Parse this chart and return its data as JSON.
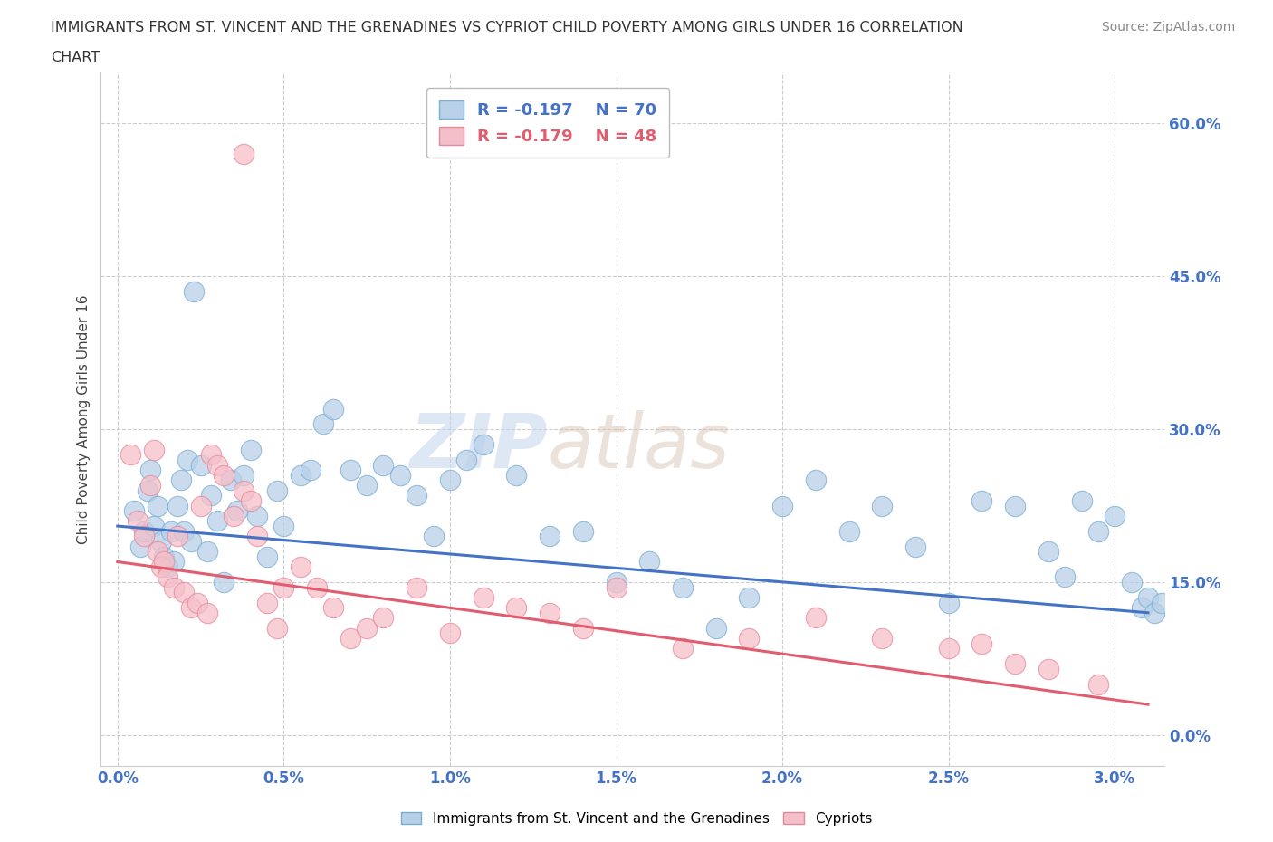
{
  "title_line1": "IMMIGRANTS FROM ST. VINCENT AND THE GRENADINES VS CYPRIOT CHILD POVERTY AMONG GIRLS UNDER 16 CORRELATION",
  "title_line2": "CHART",
  "source_text": "Source: ZipAtlas.com",
  "xlabel_vals": [
    0.0,
    0.5,
    1.0,
    1.5,
    2.0,
    2.5,
    3.0
  ],
  "ylabel_vals": [
    0.0,
    15.0,
    30.0,
    45.0,
    60.0
  ],
  "ylabel_label": "Child Poverty Among Girls Under 16",
  "xlim": [
    -0.05,
    3.15
  ],
  "ylim": [
    -3,
    65
  ],
  "blue_label": "Immigrants from St. Vincent and the Grenadines",
  "pink_label": "Cypriots",
  "blue_R": "R = -0.197",
  "blue_N": "N = 70",
  "pink_R": "R = -0.179",
  "pink_N": "N = 48",
  "blue_color": "#b8d0e8",
  "pink_color": "#f5bfc8",
  "blue_edge": "#7aaed4",
  "pink_edge": "#e888a0",
  "blue_line_color": "#4472c4",
  "pink_line_color": "#e05c6e",
  "watermark_zip": "ZIP",
  "watermark_atlas": "atlas",
  "background_color": "#ffffff",
  "grid_color": "#cccccc",
  "blue_scatter_x": [
    0.05,
    0.07,
    0.08,
    0.09,
    0.1,
    0.11,
    0.12,
    0.13,
    0.14,
    0.15,
    0.16,
    0.17,
    0.18,
    0.19,
    0.2,
    0.21,
    0.22,
    0.23,
    0.25,
    0.27,
    0.28,
    0.3,
    0.32,
    0.34,
    0.36,
    0.38,
    0.4,
    0.42,
    0.45,
    0.48,
    0.5,
    0.55,
    0.58,
    0.62,
    0.65,
    0.7,
    0.75,
    0.8,
    0.85,
    0.9,
    0.95,
    1.0,
    1.05,
    1.1,
    1.2,
    1.3,
    1.4,
    1.5,
    1.6,
    1.7,
    1.8,
    1.9,
    2.0,
    2.1,
    2.2,
    2.3,
    2.4,
    2.5,
    2.6,
    2.7,
    2.8,
    2.85,
    2.9,
    2.95,
    3.0,
    3.05,
    3.08,
    3.1,
    3.12,
    3.14
  ],
  "blue_scatter_y": [
    22.0,
    18.5,
    20.0,
    24.0,
    26.0,
    20.5,
    22.5,
    19.0,
    17.5,
    16.5,
    20.0,
    17.0,
    22.5,
    25.0,
    20.0,
    27.0,
    19.0,
    43.5,
    26.5,
    18.0,
    23.5,
    21.0,
    15.0,
    25.0,
    22.0,
    25.5,
    28.0,
    21.5,
    17.5,
    24.0,
    20.5,
    25.5,
    26.0,
    30.5,
    32.0,
    26.0,
    24.5,
    26.5,
    25.5,
    23.5,
    19.5,
    25.0,
    27.0,
    28.5,
    25.5,
    19.5,
    20.0,
    15.0,
    17.0,
    14.5,
    10.5,
    13.5,
    22.5,
    25.0,
    20.0,
    22.5,
    18.5,
    13.0,
    23.0,
    22.5,
    18.0,
    15.5,
    23.0,
    20.0,
    21.5,
    15.0,
    12.5,
    13.5,
    12.0,
    13.0
  ],
  "pink_scatter_x": [
    0.04,
    0.06,
    0.08,
    0.1,
    0.11,
    0.12,
    0.13,
    0.14,
    0.15,
    0.17,
    0.18,
    0.2,
    0.22,
    0.24,
    0.25,
    0.27,
    0.28,
    0.3,
    0.32,
    0.35,
    0.38,
    0.4,
    0.42,
    0.45,
    0.48,
    0.5,
    0.55,
    0.6,
    0.65,
    0.7,
    0.75,
    0.8,
    0.9,
    1.0,
    1.1,
    1.2,
    1.3,
    1.4,
    1.5,
    1.7,
    1.9,
    2.1,
    2.3,
    2.5,
    2.6,
    2.7,
    2.8,
    2.95
  ],
  "pink_scatter_y": [
    27.5,
    21.0,
    19.5,
    24.5,
    28.0,
    18.0,
    16.5,
    17.0,
    15.5,
    14.5,
    19.5,
    14.0,
    12.5,
    13.0,
    22.5,
    12.0,
    27.5,
    26.5,
    25.5,
    21.5,
    24.0,
    23.0,
    19.5,
    13.0,
    10.5,
    14.5,
    16.5,
    14.5,
    12.5,
    9.5,
    10.5,
    11.5,
    14.5,
    10.0,
    13.5,
    12.5,
    12.0,
    10.5,
    14.5,
    8.5,
    9.5,
    11.5,
    9.5,
    8.5,
    9.0,
    7.0,
    6.5,
    5.0
  ],
  "high_pink_x": 0.38,
  "high_pink_y": 57.0,
  "blue_trendline_x": [
    0.0,
    3.1
  ],
  "blue_trendline_y": [
    20.5,
    12.0
  ],
  "pink_trendline_x": [
    0.0,
    3.1
  ],
  "pink_trendline_y": [
    17.0,
    3.0
  ]
}
